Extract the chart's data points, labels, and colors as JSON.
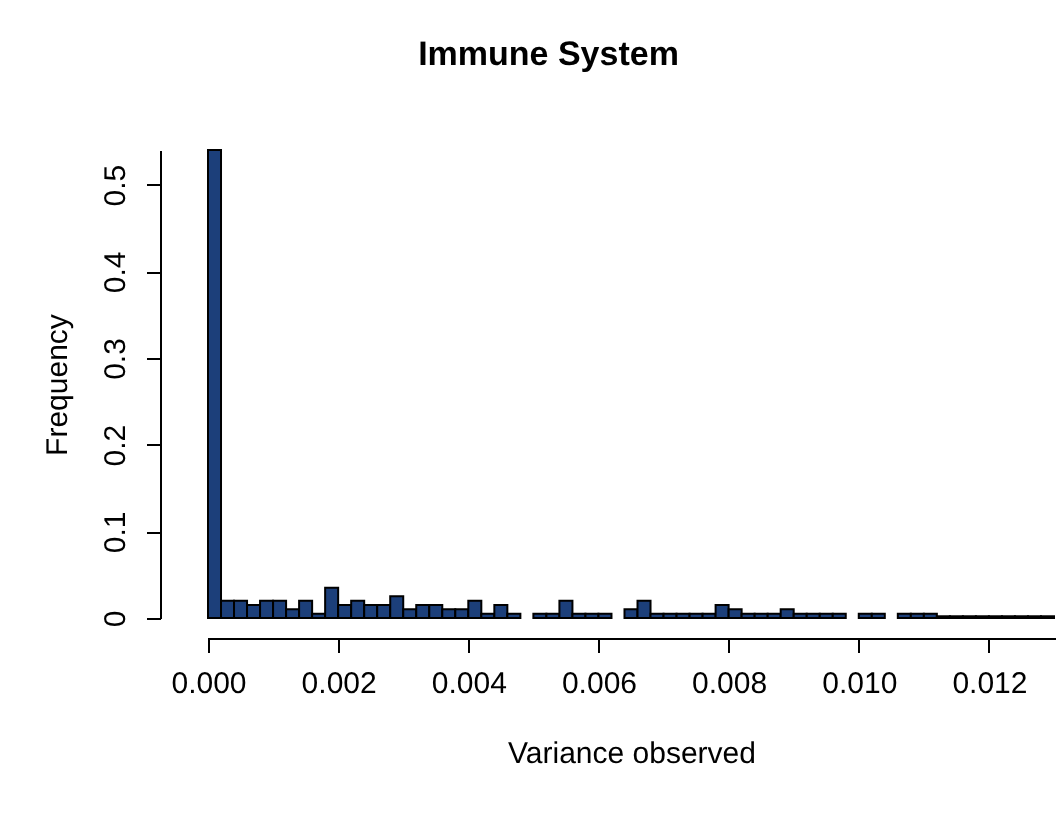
{
  "chart_data": {
    "type": "histogram",
    "title": "Immune System",
    "xlabel": "Variance observed",
    "ylabel": "Frequency",
    "bins": [
      0,
      0.0002,
      0.0004,
      0.0006,
      0.0008,
      0.001,
      0.0012,
      0.0014,
      0.0016,
      0.0018,
      0.002,
      0.0022,
      0.0024,
      0.0026,
      0.0028,
      0.003,
      0.0032,
      0.0034,
      0.0036,
      0.0038,
      0.004,
      0.0042,
      0.0044,
      0.0046,
      0.0048,
      0.005,
      0.0052,
      0.0054,
      0.0056,
      0.0058,
      0.006,
      0.0062,
      0.0064,
      0.0066,
      0.0068,
      0.007,
      0.0072,
      0.0074,
      0.0076,
      0.0078,
      0.008,
      0.0082,
      0.0084,
      0.0086,
      0.0088,
      0.009,
      0.0092,
      0.0094,
      0.0096,
      0.0098,
      0.01,
      0.0102,
      0.0104,
      0.0106,
      0.0108,
      0.011,
      0.0112,
      0.0114,
      0.0116,
      0.0118,
      0.012,
      0.0122,
      0.0124,
      0.0126,
      0.0128,
      0.013
    ],
    "values": [
      0.54,
      0.02,
      0.02,
      0.015,
      0.02,
      0.02,
      0.01,
      0.02,
      0.005,
      0.035,
      0.015,
      0.02,
      0.015,
      0.015,
      0.025,
      0.01,
      0.015,
      0.015,
      0.01,
      0.01,
      0.02,
      0.005,
      0.015,
      0.005,
      0,
      0.005,
      0.005,
      0.02,
      0.005,
      0.005,
      0.005,
      0,
      0.01,
      0.02,
      0.005,
      0.005,
      0.005,
      0.005,
      0.005,
      0.015,
      0.01,
      0.005,
      0.005,
      0.005,
      0.01,
      0.005,
      0.005,
      0.005,
      0.005,
      0,
      0.005,
      0.005,
      0,
      0.005,
      0.005,
      0.005,
      0.002,
      0.002,
      0.002,
      0.002,
      0.002,
      0.002,
      0.002,
      0.002,
      0.002
    ],
    "color": "#1c3f7a",
    "xlim": [
      0,
      0.013
    ],
    "ylim": [
      0,
      0.54
    ],
    "xticks": [
      {
        "value": 0,
        "label": "0.000"
      },
      {
        "value": 0.002,
        "label": "0.002"
      },
      {
        "value": 0.004,
        "label": "0.004"
      },
      {
        "value": 0.006,
        "label": "0.006"
      },
      {
        "value": 0.008,
        "label": "0.008"
      },
      {
        "value": 0.01,
        "label": "0.010"
      },
      {
        "value": 0.012,
        "label": "0.012"
      }
    ],
    "yticks": [
      0,
      0.1,
      0.2,
      0.3,
      0.4,
      0.5
    ],
    "grid": false
  }
}
